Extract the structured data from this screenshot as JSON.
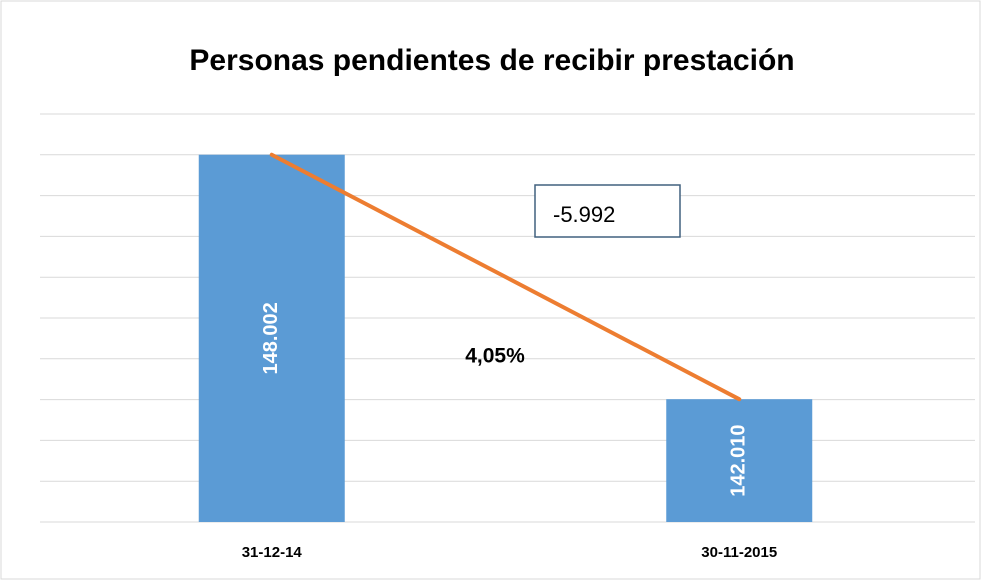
{
  "chart_data": {
    "type": "bar",
    "title": "Personas pendientes de recibir prestación",
    "categories": [
      "31-12-14",
      "30-11-2015"
    ],
    "values": [
      148002,
      142010
    ],
    "value_labels": [
      "148.002",
      "142.010"
    ],
    "color": "#5b9bd5",
    "line_color": "#ed7d31",
    "ylim": [
      139000,
      149000
    ],
    "yticks": [
      139000,
      140000,
      141000,
      142000,
      143000,
      144000,
      145000,
      146000,
      147000,
      148000,
      149000
    ],
    "grid": true,
    "annotations": [
      "-5.992",
      "4,05%"
    ]
  }
}
